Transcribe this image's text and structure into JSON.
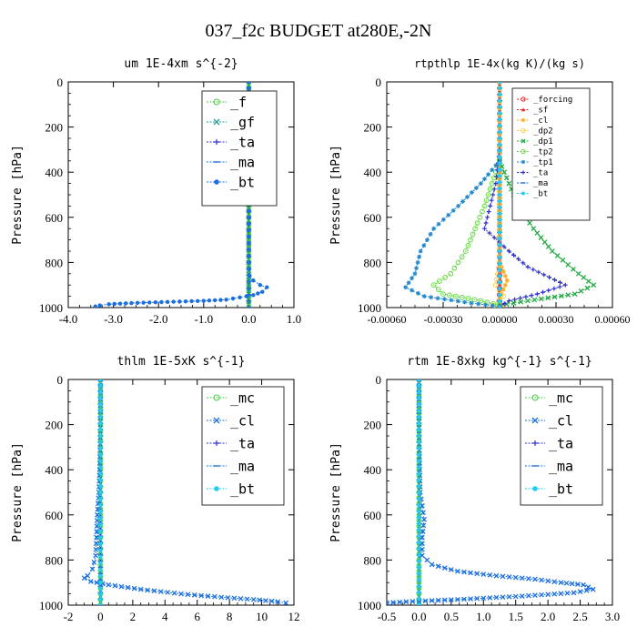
{
  "figure": {
    "title": "037_f2c  BUDGET at280E,-2N"
  },
  "chart_data": [
    {
      "type": "line",
      "title": "um   1E-4xm s^{-2}",
      "ylabel": "Pressure [hPa]",
      "xlim": [
        -4.0,
        1.0
      ],
      "ylim": [
        1000,
        0
      ],
      "xticks": [
        "-4.0",
        "-3.0",
        "-2.0",
        "-1.0",
        "0.0",
        "1.0"
      ],
      "yticks": [
        "0",
        "200",
        "400",
        "600",
        "800",
        "1000"
      ],
      "legend_position": "top-right",
      "series": [
        {
          "name": "_f",
          "color": "#44cc44",
          "marker": "circle",
          "points": [
            [
              0,
              0
            ],
            [
              0,
              100
            ],
            [
              0,
              200
            ],
            [
              0,
              300
            ],
            [
              0,
              400
            ],
            [
              0,
              500
            ],
            [
              0,
              600
            ],
            [
              0,
              700
            ],
            [
              0,
              800
            ],
            [
              0,
              850
            ],
            [
              0,
              900
            ],
            [
              0,
              950
            ],
            [
              0,
              1000
            ]
          ]
        },
        {
          "name": "_gf",
          "color": "#22a0a0",
          "marker": "x",
          "points": [
            [
              0,
              0
            ],
            [
              0,
              200
            ],
            [
              0,
              400
            ],
            [
              0,
              600
            ],
            [
              0,
              800
            ],
            [
              0,
              900
            ],
            [
              0,
              950
            ],
            [
              0,
              1000
            ]
          ]
        },
        {
          "name": "_ta",
          "color": "#3030cc",
          "marker": "plus",
          "points": [
            [
              0,
              0
            ],
            [
              0,
              400
            ],
            [
              0,
              800
            ],
            [
              0,
              1000
            ]
          ]
        },
        {
          "name": "_ma",
          "color": "#2070d0",
          "marker": "dash",
          "points": [
            [
              0,
              0
            ],
            [
              0,
              400
            ],
            [
              0,
              800
            ],
            [
              0,
              1000
            ]
          ]
        },
        {
          "name": "_bt",
          "color": "#1a6fe0",
          "marker": "dot",
          "points": [
            [
              0,
              0
            ],
            [
              0,
              400
            ],
            [
              0,
              800
            ],
            [
              0.02,
              860
            ],
            [
              0.1,
              880
            ],
            [
              0.25,
              900
            ],
            [
              0.4,
              910
            ],
            [
              0.3,
              930
            ],
            [
              0.1,
              945
            ],
            [
              -0.2,
              955
            ],
            [
              -0.5,
              965
            ],
            [
              -1.0,
              970
            ],
            [
              -1.8,
              975
            ],
            [
              -2.6,
              980
            ],
            [
              -3.1,
              985
            ],
            [
              -3.3,
              990
            ],
            [
              -3.4,
              995
            ]
          ]
        }
      ]
    },
    {
      "type": "line",
      "title": "rtpthlp   1E-4x(kg K)/(kg s)",
      "ylabel": "Pressure [hPa]",
      "xlim": [
        -0.0006,
        0.0006
      ],
      "ylim": [
        1000,
        0
      ],
      "xticks": [
        "-0.00060",
        "-0.00030",
        "0.00000",
        "0.00030",
        "0.00060"
      ],
      "yticks": [
        "0",
        "200",
        "400",
        "600",
        "800",
        "1000"
      ],
      "legend_position": "top-right",
      "series": [
        {
          "name": "_forcing",
          "color": "#ee2222",
          "marker": "circle",
          "points": [
            [
              0,
              0
            ],
            [
              0,
              200
            ],
            [
              0,
              400
            ],
            [
              0,
              600
            ],
            [
              0,
              800
            ],
            [
              0,
              1000
            ]
          ]
        },
        {
          "name": "_sf",
          "color": "#ee2222",
          "marker": "triangle",
          "points": [
            [
              0,
              0
            ],
            [
              0,
              500
            ],
            [
              0,
              1000
            ]
          ]
        },
        {
          "name": "_cl",
          "color": "#ffaa22",
          "marker": "star",
          "points": [
            [
              0,
              0
            ],
            [
              0,
              800
            ],
            [
              2e-05,
              840
            ],
            [
              4e-05,
              880
            ],
            [
              2e-05,
              920
            ],
            [
              0,
              960
            ],
            [
              1e-05,
              990
            ],
            [
              0,
              1000
            ]
          ]
        },
        {
          "name": "_dp2",
          "color": "#ffcc44",
          "marker": "circle",
          "points": [
            [
              0,
              0
            ],
            [
              0,
              800
            ],
            [
              -2e-05,
              900
            ],
            [
              2e-05,
              950
            ],
            [
              -3e-05,
              990
            ],
            [
              0,
              1000
            ]
          ]
        },
        {
          "name": "_dp1",
          "color": "#22aa44",
          "marker": "cross",
          "points": [
            [
              0,
              350
            ],
            [
              5e-05,
              450
            ],
            [
              0.0001,
              550
            ],
            [
              0.00018,
              650
            ],
            [
              0.00028,
              750
            ],
            [
              0.00042,
              850
            ],
            [
              0.0005,
              900
            ],
            [
              0.0004,
              940
            ],
            [
              0.00015,
              970
            ],
            [
              0,
              990
            ]
          ]
        },
        {
          "name": "_tp2",
          "color": "#66dd44",
          "marker": "circle",
          "points": [
            [
              0,
              350
            ],
            [
              -4e-05,
              450
            ],
            [
              -8e-05,
              550
            ],
            [
              -0.00013,
              650
            ],
            [
              -0.00018,
              750
            ],
            [
              -0.00026,
              850
            ],
            [
              -0.00035,
              900
            ],
            [
              -0.0003,
              940
            ],
            [
              -0.0001,
              970
            ],
            [
              0,
              990
            ]
          ]
        },
        {
          "name": "_tp1",
          "color": "#2288cc",
          "marker": "asterisk",
          "points": [
            [
              0,
              350
            ],
            [
              -0.0001,
              450
            ],
            [
              -0.00022,
              550
            ],
            [
              -0.00035,
              650
            ],
            [
              -0.00042,
              750
            ],
            [
              -0.00045,
              850
            ],
            [
              -0.0005,
              910
            ],
            [
              -0.0004,
              950
            ],
            [
              -0.00015,
              980
            ],
            [
              0,
              995
            ]
          ]
        },
        {
          "name": "_ta",
          "color": "#3030cc",
          "marker": "plus",
          "points": [
            [
              0,
              300
            ],
            [
              -2e-05,
              450
            ],
            [
              -5e-05,
              550
            ],
            [
              -8e-05,
              650
            ],
            [
              5e-05,
              750
            ],
            [
              0.00015,
              820
            ],
            [
              0.00035,
              900
            ],
            [
              0.0002,
              940
            ],
            [
              5e-05,
              970
            ],
            [
              0,
              995
            ]
          ]
        },
        {
          "name": "_ma",
          "color": "#2070d0",
          "marker": "dash",
          "points": [
            [
              0,
              0
            ],
            [
              0,
              500
            ],
            [
              0,
              1000
            ]
          ]
        },
        {
          "name": "_bt",
          "color": "#22ccee",
          "marker": "dot",
          "points": [
            [
              0,
              0
            ],
            [
              0,
              500
            ],
            [
              0,
              1000
            ]
          ]
        }
      ]
    },
    {
      "type": "line",
      "title": "thlm   1E-5xK s^{-1}",
      "ylabel": "Pressure [hPa]",
      "xlim": [
        -2,
        12
      ],
      "ylim": [
        1000,
        0
      ],
      "xticks": [
        "-2",
        "0",
        "2",
        "4",
        "6",
        "8",
        "10",
        "12"
      ],
      "yticks": [
        "0",
        "200",
        "400",
        "600",
        "800",
        "1000"
      ],
      "legend_position": "top-right",
      "series": [
        {
          "name": "_mc",
          "color": "#44cc44",
          "marker": "circle",
          "points": [
            [
              0,
              0
            ],
            [
              0,
              100
            ],
            [
              0,
              200
            ],
            [
              0,
              300
            ],
            [
              0,
              400
            ],
            [
              0,
              500
            ],
            [
              0,
              600
            ],
            [
              0,
              700
            ],
            [
              0,
              800
            ],
            [
              0,
              900
            ],
            [
              0,
              1000
            ]
          ]
        },
        {
          "name": "_cl",
          "color": "#1a6fe0",
          "marker": "x",
          "points": [
            [
              0,
              0
            ],
            [
              0,
              200
            ],
            [
              -0.05,
              400
            ],
            [
              -0.1,
              500
            ],
            [
              -0.2,
              600
            ],
            [
              -0.25,
              700
            ],
            [
              -0.3,
              780
            ],
            [
              -0.5,
              840
            ],
            [
              -0.8,
              870
            ],
            [
              -1.0,
              880
            ],
            [
              -0.6,
              895
            ],
            [
              0.5,
              910
            ],
            [
              2.5,
              930
            ],
            [
              5.0,
              950
            ],
            [
              7.5,
              965
            ],
            [
              9.5,
              975
            ],
            [
              11.0,
              985
            ],
            [
              11.5,
              990
            ]
          ]
        },
        {
          "name": "_ta",
          "color": "#3030cc",
          "marker": "plus",
          "points": [
            [
              0,
              0
            ],
            [
              0,
              500
            ],
            [
              0,
              1000
            ]
          ]
        },
        {
          "name": "_ma",
          "color": "#2070d0",
          "marker": "dash",
          "points": [
            [
              0,
              0
            ],
            [
              0,
              500
            ],
            [
              0,
              1000
            ]
          ]
        },
        {
          "name": "_bt",
          "color": "#22ccee",
          "marker": "dot",
          "points": [
            [
              0,
              0
            ],
            [
              0,
              500
            ],
            [
              0,
              900
            ],
            [
              0,
              1000
            ]
          ]
        }
      ]
    },
    {
      "type": "line",
      "title": "rtm   1E-8xkg kg^{-1} s^{-1}",
      "ylabel": "Pressure [hPa]",
      "xlim": [
        -0.5,
        3.0
      ],
      "ylim": [
        1000,
        0
      ],
      "xticks": [
        "-0.5",
        "0.0",
        "0.5",
        "1.0",
        "1.5",
        "2.0",
        "2.5",
        "3.0"
      ],
      "yticks": [
        "0",
        "200",
        "400",
        "600",
        "800",
        "1000"
      ],
      "legend_position": "top-right",
      "series": [
        {
          "name": "_mc",
          "color": "#44cc44",
          "marker": "circle",
          "points": [
            [
              0,
              0
            ],
            [
              0,
              100
            ],
            [
              0,
              200
            ],
            [
              0,
              300
            ],
            [
              0,
              400
            ],
            [
              0,
              500
            ],
            [
              0,
              600
            ],
            [
              0,
              700
            ],
            [
              0,
              800
            ],
            [
              0,
              900
            ],
            [
              0,
              1000
            ]
          ]
        },
        {
          "name": "_cl",
          "color": "#1a6fe0",
          "marker": "x",
          "points": [
            [
              0,
              0
            ],
            [
              0,
              200
            ],
            [
              0.01,
              400
            ],
            [
              0.02,
              500
            ],
            [
              0.05,
              560
            ],
            [
              0.08,
              620
            ],
            [
              0.05,
              700
            ],
            [
              0.05,
              780
            ],
            [
              0.2,
              820
            ],
            [
              0.6,
              850
            ],
            [
              1.2,
              870
            ],
            [
              1.8,
              885
            ],
            [
              2.2,
              900
            ],
            [
              2.55,
              910
            ],
            [
              2.7,
              930
            ],
            [
              2.4,
              945
            ],
            [
              1.6,
              960
            ],
            [
              0.6,
              975
            ],
            [
              -0.2,
              985
            ],
            [
              -0.5,
              990
            ]
          ]
        },
        {
          "name": "_ta",
          "color": "#3030cc",
          "marker": "plus",
          "points": [
            [
              0,
              0
            ],
            [
              0,
              500
            ],
            [
              0,
              1000
            ]
          ]
        },
        {
          "name": "_ma",
          "color": "#2070d0",
          "marker": "dash",
          "points": [
            [
              0,
              0
            ],
            [
              0,
              500
            ],
            [
              0,
              1000
            ]
          ]
        },
        {
          "name": "_bt",
          "color": "#22ccee",
          "marker": "dot",
          "points": [
            [
              0,
              0
            ],
            [
              0,
              500
            ],
            [
              0,
              1000
            ]
          ]
        }
      ]
    }
  ]
}
